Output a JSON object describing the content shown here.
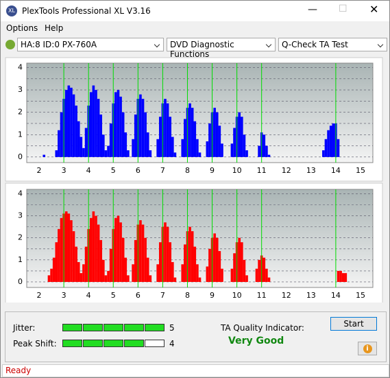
{
  "window": {
    "title": "PlexTools Professional XL V3.16",
    "menu": [
      "Options",
      "Help"
    ],
    "toolbar": {
      "drive": "HA:8 ID:0  PX-760A",
      "function": "DVD Diagnostic Functions",
      "test": "Q-Check TA Test"
    }
  },
  "plots": [
    {
      "color": "#0000ff",
      "marker_color": "#00dd00",
      "xlim": [
        1.5,
        15.5
      ],
      "ylim": [
        -0.25,
        4.2
      ],
      "xticks": [
        2,
        3,
        4,
        5,
        6,
        7,
        8,
        9,
        10,
        11,
        12,
        13,
        14,
        15
      ],
      "yticks": [
        0,
        0.5,
        1,
        1.5,
        2,
        2.5,
        3,
        3.5,
        4
      ],
      "markers": [
        3,
        4,
        5,
        6,
        7,
        8,
        9,
        10,
        11,
        14
      ],
      "x": [
        2.2,
        2.7,
        2.8,
        2.9,
        3.0,
        3.1,
        3.2,
        3.3,
        3.4,
        3.5,
        3.6,
        3.7,
        3.8,
        3.9,
        4.0,
        4.1,
        4.2,
        4.3,
        4.4,
        4.5,
        4.6,
        4.7,
        4.8,
        4.9,
        5.0,
        5.1,
        5.2,
        5.3,
        5.4,
        5.5,
        5.6,
        5.8,
        5.9,
        6.0,
        6.1,
        6.2,
        6.3,
        6.4,
        6.5,
        6.8,
        6.9,
        7.0,
        7.1,
        7.2,
        7.3,
        7.4,
        7.5,
        7.8,
        7.9,
        8.0,
        8.1,
        8.2,
        8.3,
        8.4,
        8.5,
        8.8,
        8.9,
        9.0,
        9.1,
        9.2,
        9.3,
        9.4,
        9.8,
        9.9,
        10.0,
        10.1,
        10.2,
        10.3,
        10.4,
        10.9,
        11.0,
        11.1,
        11.2,
        11.3,
        13.5,
        13.6,
        13.7,
        13.8,
        13.9,
        14.0,
        14.1
      ],
      "values": [
        0.1,
        0.3,
        1.2,
        2.0,
        2.6,
        3.0,
        3.2,
        3.1,
        2.8,
        2.3,
        1.6,
        0.9,
        0.4,
        1.3,
        2.3,
        2.9,
        3.2,
        3.0,
        2.6,
        1.9,
        1.0,
        0.3,
        0.5,
        1.5,
        2.4,
        2.9,
        3.0,
        2.7,
        2.0,
        1.1,
        0.3,
        0.8,
        1.9,
        2.6,
        2.8,
        2.6,
        2.0,
        1.1,
        0.3,
        0.8,
        1.8,
        2.4,
        2.6,
        2.4,
        1.8,
        0.9,
        0.2,
        0.8,
        1.7,
        2.2,
        2.4,
        2.2,
        1.6,
        0.8,
        0.2,
        0.7,
        1.5,
        2.0,
        2.2,
        2.0,
        1.4,
        0.6,
        0.6,
        1.3,
        1.8,
        2.0,
        1.8,
        1.0,
        0.3,
        0.5,
        1.1,
        1.0,
        0.5,
        0.1,
        0.3,
        0.8,
        1.2,
        1.4,
        1.5,
        1.5,
        0.8
      ]
    },
    {
      "color": "#ff0000",
      "marker_color": "#00dd00",
      "xlim": [
        1.5,
        15.5
      ],
      "ylim": [
        -0.25,
        4.2
      ],
      "xticks": [
        2,
        3,
        4,
        5,
        6,
        7,
        8,
        9,
        10,
        11,
        12,
        13,
        14,
        15
      ],
      "yticks": [
        0,
        0.5,
        1,
        1.5,
        2,
        2.5,
        3,
        3.5,
        4
      ],
      "markers": [
        3,
        4,
        5,
        6,
        7,
        8,
        9,
        10,
        11,
        14
      ],
      "x": [
        2.4,
        2.5,
        2.6,
        2.7,
        2.8,
        2.9,
        3.0,
        3.1,
        3.2,
        3.3,
        3.4,
        3.5,
        3.6,
        3.7,
        3.8,
        3.9,
        4.0,
        4.1,
        4.2,
        4.3,
        4.4,
        4.5,
        4.6,
        4.7,
        4.8,
        4.9,
        5.0,
        5.1,
        5.2,
        5.3,
        5.4,
        5.5,
        5.6,
        5.8,
        5.9,
        6.0,
        6.1,
        6.2,
        6.3,
        6.4,
        6.5,
        6.8,
        6.9,
        7.0,
        7.1,
        7.2,
        7.3,
        7.4,
        7.5,
        7.8,
        7.9,
        8.0,
        8.1,
        8.2,
        8.3,
        8.4,
        8.5,
        8.8,
        8.9,
        9.0,
        9.1,
        9.2,
        9.3,
        9.4,
        9.8,
        9.9,
        10.0,
        10.1,
        10.2,
        10.3,
        10.4,
        10.8,
        10.9,
        11.0,
        11.1,
        11.2,
        11.3,
        14.1,
        14.2,
        14.3,
        14.4
      ],
      "values": [
        0.3,
        0.6,
        1.1,
        1.8,
        2.4,
        2.9,
        3.1,
        3.2,
        3.1,
        2.8,
        2.3,
        1.6,
        0.9,
        0.4,
        0.8,
        1.6,
        2.4,
        2.9,
        3.2,
        3.0,
        2.6,
        1.9,
        1.0,
        0.3,
        0.5,
        1.5,
        2.4,
        2.9,
        3.0,
        2.7,
        2.0,
        1.1,
        0.3,
        0.8,
        1.9,
        2.6,
        2.8,
        2.6,
        2.0,
        1.1,
        0.3,
        0.8,
        1.8,
        2.5,
        2.7,
        2.5,
        1.8,
        0.9,
        0.2,
        0.8,
        1.7,
        2.3,
        2.5,
        2.3,
        1.6,
        0.8,
        0.2,
        0.7,
        1.5,
        2.0,
        2.2,
        2.0,
        1.4,
        0.6,
        0.6,
        1.3,
        1.8,
        2.0,
        1.8,
        1.0,
        0.3,
        0.6,
        1.0,
        1.2,
        1.1,
        0.6,
        0.2,
        0.5,
        0.5,
        0.4,
        0.4
      ]
    }
  ],
  "results": {
    "jitter": {
      "label": "Jitter:",
      "value": 5,
      "segments": 5
    },
    "peak_shift": {
      "label": "Peak Shift:",
      "value": 4,
      "segments": 5
    },
    "ta_label": "TA Quality Indicator:",
    "ta_value": "Very Good",
    "start": "Start"
  },
  "status": "Ready"
}
